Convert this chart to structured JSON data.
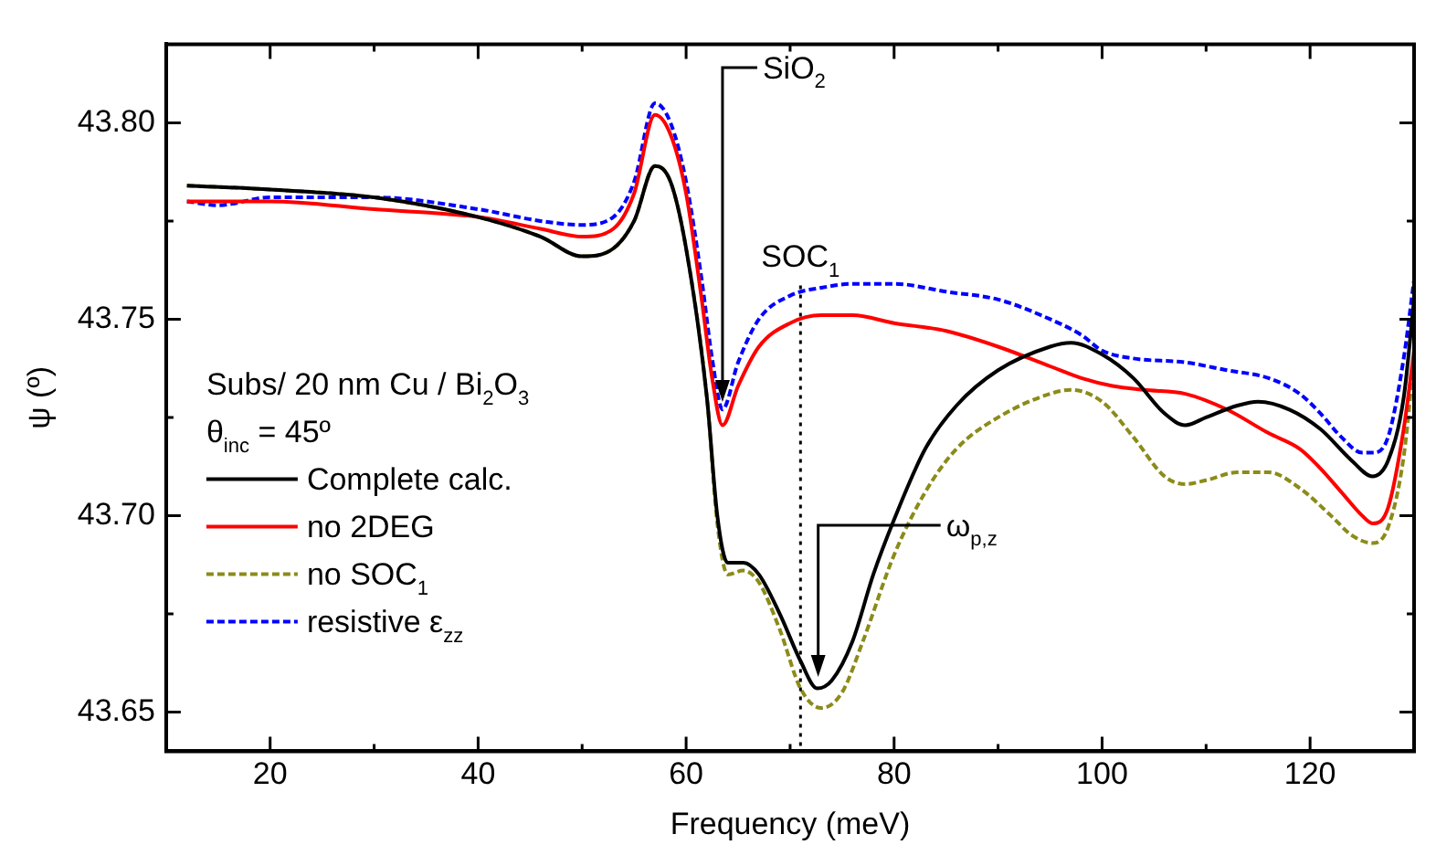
{
  "chart_data": {
    "type": "line",
    "xlabel": "Frequency (meV)",
    "ylabel": "ψ (º)",
    "xlim": [
      10,
      130
    ],
    "xticks": [
      20,
      40,
      60,
      80,
      100,
      120,
      {
        "value": 30,
        "label": null
      },
      {
        "value": 50,
        "label": null
      },
      {
        "value": 70,
        "label": null
      },
      {
        "value": 90,
        "label": null
      },
      {
        "value": 110,
        "label": null
      }
    ],
    "ylim": [
      43.64,
      43.82
    ],
    "yticks": [
      {
        "value": 43.65,
        "label": "43.65"
      },
      {
        "value": 43.7,
        "label": "43.70"
      },
      {
        "value": 43.75,
        "label": "43.75"
      },
      {
        "value": 43.8,
        "label": "43.80"
      },
      {
        "value": 43.675,
        "label": null
      },
      {
        "value": 43.725,
        "label": null
      },
      {
        "value": 43.775,
        "label": null
      }
    ],
    "legend": "bottom left",
    "marker": "none",
    "annotations": [
      "Subs/ 20 nm Cu / Bi$_{2}$O$_{3}$",
      "θ$_{inc}$ = 45º",
      {
        "text": "SiO$_{2}$",
        "x": 63.5,
        "y": 43.728
      },
      {
        "text": "ω$_{p,z}$",
        "x": 72.7,
        "y": 43.658
      }
    ],
    "ref_lines": [
      {
        "axis": "x",
        "value": 71,
        "label": "SOC$_{1}$",
        "line_style": "dotted",
        "color": "#000000"
      }
    ],
    "series": [
      {
        "name": "Complete calc.",
        "color": "#000000",
        "line_style": "solid",
        "x": [
          12,
          20,
          30,
          40,
          46,
          50,
          53,
          55,
          57,
          58.5,
          60,
          62,
          63,
          64,
          65.5,
          67,
          69,
          71,
          72.6,
          74,
          76,
          78,
          80,
          83,
          86,
          90,
          95,
          97,
          100,
          103,
          106,
          108,
          110,
          113,
          115,
          118,
          121,
          124,
          126,
          127.5,
          129,
          130
        ],
        "values": [
          43.784,
          43.783,
          43.781,
          43.776,
          43.771,
          43.766,
          43.768,
          43.775,
          43.789,
          43.785,
          43.768,
          43.73,
          43.7,
          43.688,
          43.688,
          43.685,
          43.675,
          43.663,
          43.656,
          43.658,
          43.668,
          43.685,
          43.699,
          43.717,
          43.728,
          43.737,
          43.743,
          43.744,
          43.741,
          43.735,
          43.726,
          43.723,
          43.725,
          43.728,
          43.729,
          43.727,
          43.722,
          43.714,
          43.71,
          43.714,
          43.73,
          43.755
        ]
      },
      {
        "name": "no 2DEG",
        "color": "#ff0000",
        "line_style": "solid",
        "x": [
          12,
          20,
          30,
          40,
          46,
          50,
          53,
          55,
          57,
          58.5,
          60,
          61.5,
          62.5,
          63.5,
          65,
          67,
          70,
          73,
          76,
          80,
          85,
          90,
          95,
          98,
          101,
          104,
          108,
          112,
          116,
          119,
          121,
          123,
          125,
          126,
          127.5,
          129,
          130
        ],
        "values": [
          43.78,
          43.78,
          43.778,
          43.776,
          43.773,
          43.771,
          43.773,
          43.782,
          43.802,
          43.797,
          43.782,
          43.755,
          43.735,
          43.723,
          43.733,
          43.743,
          43.749,
          43.751,
          43.751,
          43.749,
          43.747,
          43.743,
          43.738,
          43.735,
          43.733,
          43.732,
          43.731,
          43.727,
          43.721,
          43.717,
          43.712,
          43.706,
          43.7,
          43.698,
          43.702,
          43.722,
          43.742
        ]
      },
      {
        "name": "no SOC$_{1}$",
        "color": "#8b8b1a",
        "line_style": "dashed",
        "x": [
          12,
          20,
          30,
          40,
          46,
          50,
          53,
          55,
          57,
          58.5,
          60,
          62,
          63,
          64,
          65.5,
          67,
          69,
          71,
          73,
          75,
          77,
          80,
          83,
          86,
          90,
          95,
          97,
          100,
          103,
          106,
          108,
          110,
          113,
          116,
          119,
          122,
          124,
          126,
          127.5,
          129,
          130
        ],
        "values": [
          43.784,
          43.783,
          43.781,
          43.776,
          43.771,
          43.766,
          43.768,
          43.775,
          43.789,
          43.785,
          43.768,
          43.73,
          43.698,
          43.685,
          43.686,
          43.683,
          43.671,
          43.656,
          43.651,
          43.655,
          43.668,
          43.69,
          43.706,
          43.717,
          43.725,
          43.731,
          43.732,
          43.729,
          43.72,
          43.71,
          43.708,
          43.709,
          43.711,
          43.711,
          43.707,
          43.7,
          43.695,
          43.693,
          43.697,
          43.715,
          43.74
        ]
      },
      {
        "name": "resistive ε$_{zz}$",
        "color": "#0000ff",
        "line_style": "dashed",
        "x": [
          12,
          15,
          20,
          30,
          40,
          46,
          50,
          53,
          55,
          57,
          58.5,
          60,
          61.5,
          62.5,
          63.5,
          65,
          67,
          70,
          73,
          76,
          80,
          85,
          90,
          95,
          98,
          100,
          103,
          108,
          112,
          116,
          119,
          121,
          123,
          125,
          126,
          127.5,
          129,
          130
        ],
        "values": [
          43.78,
          43.779,
          43.781,
          43.781,
          43.778,
          43.775,
          43.774,
          43.776,
          43.785,
          43.805,
          43.8,
          43.785,
          43.76,
          43.74,
          43.727,
          43.739,
          43.75,
          43.756,
          43.758,
          43.759,
          43.759,
          43.757,
          43.755,
          43.75,
          43.746,
          43.742,
          43.74,
          43.739,
          43.737,
          43.735,
          43.731,
          43.726,
          43.72,
          43.716,
          43.716,
          43.72,
          43.74,
          43.76
        ]
      }
    ]
  }
}
